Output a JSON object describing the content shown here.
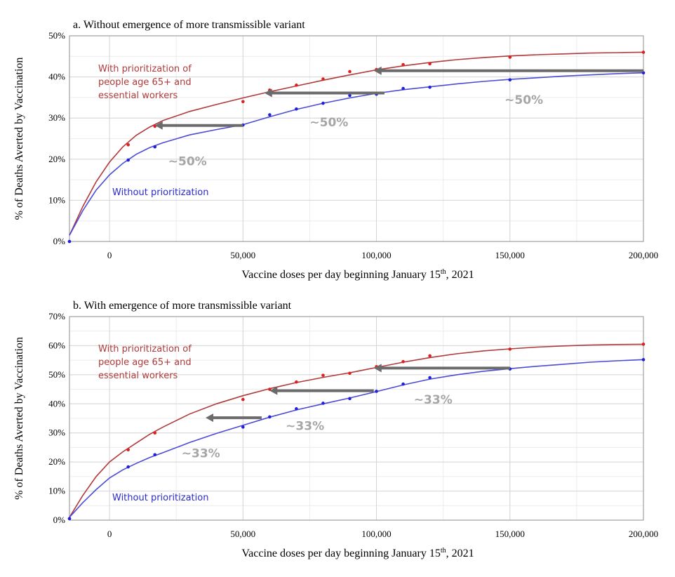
{
  "chart_data": [
    {
      "type": "line",
      "title": "a. Without emergence of more transmissible variant",
      "xlabel_main": "Vaccine doses per day beginning January 15",
      "xlabel_sup": "th",
      "xlabel_tail": ", 2021",
      "ylabel": "% of Deaths Averted by Vaccination",
      "xlim": [
        -15000,
        200000
      ],
      "ylim": [
        0,
        50
      ],
      "x_ticks": [
        0,
        50000,
        100000,
        150000,
        200000
      ],
      "x_tick_labels": [
        "0",
        "50,000",
        "100,000",
        "150,000",
        "200,000"
      ],
      "y_ticks": [
        0,
        10,
        20,
        30,
        40,
        50
      ],
      "y_tick_labels": [
        "0%",
        "10%",
        "20%",
        "30%",
        "40%",
        "50%"
      ],
      "grid": true,
      "series": [
        {
          "name": "With prioritization of people age 65+ and essential workers",
          "label_lines": [
            "With prioritization of",
            "people age 65+ and",
            "essential workers"
          ],
          "color": "#b03a3a",
          "point_color": "#e02020",
          "points_x": [
            -15000,
            7000,
            17000,
            50000,
            60000,
            70000,
            80000,
            90000,
            100000,
            110000,
            120000,
            150000,
            200000
          ],
          "points_y": [
            0,
            23.5,
            28,
            34,
            36.8,
            38,
            39.5,
            41.3,
            41.8,
            43,
            43.2,
            44.8,
            46
          ],
          "curve_x": [
            -15000,
            -10000,
            -5000,
            0,
            5000,
            10000,
            15000,
            20000,
            30000,
            40000,
            50000,
            60000,
            70000,
            80000,
            90000,
            100000,
            110000,
            120000,
            130000,
            140000,
            150000,
            160000,
            170000,
            180000,
            190000,
            200000
          ],
          "curve_y": [
            1.5,
            8.5,
            14.5,
            19.3,
            23,
            25.8,
            27.8,
            29.4,
            31.6,
            33.3,
            34.9,
            36.4,
            37.8,
            39.2,
            40.5,
            41.7,
            42.7,
            43.5,
            44.2,
            44.7,
            45.1,
            45.4,
            45.6,
            45.8,
            45.9,
            46
          ]
        },
        {
          "name": "Without prioritization",
          "label_lines": [
            "Without prioritization"
          ],
          "color": "#4b4bd6",
          "point_color": "#2020dd",
          "points_x": [
            -15000,
            7000,
            17000,
            50000,
            60000,
            70000,
            80000,
            90000,
            100000,
            110000,
            120000,
            150000,
            200000
          ],
          "points_y": [
            0,
            19.8,
            23,
            28.3,
            30.8,
            32.2,
            33.6,
            35.5,
            35.8,
            37.2,
            37.5,
            39.3,
            41
          ],
          "curve_x": [
            -15000,
            -10000,
            -5000,
            0,
            5000,
            10000,
            15000,
            20000,
            30000,
            40000,
            50000,
            60000,
            70000,
            80000,
            90000,
            100000,
            110000,
            120000,
            130000,
            140000,
            150000,
            160000,
            170000,
            180000,
            190000,
            200000
          ],
          "curve_y": [
            1.5,
            7.5,
            12.5,
            16.2,
            19,
            21.2,
            22.8,
            24,
            25.9,
            27.2,
            28.4,
            30.3,
            32.1,
            33.6,
            34.9,
            36,
            36.9,
            37.6,
            38.3,
            38.9,
            39.4,
            39.8,
            40.2,
            40.5,
            40.8,
            41
          ]
        }
      ],
      "arrows": [
        {
          "x_from": 50000,
          "x_to": 17000,
          "y": 28.2
        },
        {
          "x_from": 103000,
          "x_to": 58000,
          "y": 36.1
        },
        {
          "x_from": 200000,
          "x_to": 99000,
          "y": 41.5
        }
      ],
      "annotations": [
        {
          "text": "~50%",
          "x": 22000,
          "y": 19.5
        },
        {
          "text": "~50%",
          "x": 75000,
          "y": 29
        },
        {
          "text": "~50%",
          "x": 148000,
          "y": 34.5
        }
      ]
    },
    {
      "type": "line",
      "title": "b. With emergence of more transmissible variant",
      "xlabel_main": "Vaccine doses per day beginning January 15",
      "xlabel_sup": "th",
      "xlabel_tail": ", 2021",
      "ylabel": "% of Deaths Averted by Vaccination",
      "xlim": [
        -15000,
        200000
      ],
      "ylim": [
        0,
        70
      ],
      "x_ticks": [
        0,
        50000,
        100000,
        150000,
        200000
      ],
      "x_tick_labels": [
        "0",
        "50,000",
        "100,000",
        "150,000",
        "200,000"
      ],
      "y_ticks": [
        0,
        10,
        20,
        30,
        40,
        50,
        60,
        70
      ],
      "y_tick_labels": [
        "0%",
        "10%",
        "20%",
        "30%",
        "40%",
        "50%",
        "60%",
        "70%"
      ],
      "grid": true,
      "series": [
        {
          "name": "With prioritization of people age 65+ and essential workers",
          "label_lines": [
            "With prioritization of",
            "people age 65+ and",
            "essential workers"
          ],
          "color": "#b03a3a",
          "point_color": "#e02020",
          "points_x": [
            -15000,
            7000,
            17000,
            50000,
            60000,
            70000,
            80000,
            90000,
            100000,
            110000,
            120000,
            150000,
            200000
          ],
          "points_y": [
            0.5,
            24.2,
            30,
            41.5,
            45,
            47.5,
            49.8,
            50.5,
            52.8,
            54.5,
            56.5,
            58.8,
            60.5
          ],
          "curve_x": [
            -15000,
            -10000,
            -5000,
            0,
            5000,
            10000,
            15000,
            20000,
            30000,
            40000,
            50000,
            60000,
            70000,
            80000,
            90000,
            100000,
            110000,
            120000,
            130000,
            140000,
            150000,
            160000,
            170000,
            180000,
            190000,
            200000
          ],
          "curve_y": [
            1,
            8.5,
            15,
            20,
            23.5,
            26.5,
            29.5,
            32,
            36.5,
            40,
            42.8,
            45.2,
            47.3,
            49.1,
            50.7,
            52.5,
            54.3,
            55.9,
            57.2,
            58.2,
            58.9,
            59.5,
            59.9,
            60.2,
            60.4,
            60.5
          ]
        },
        {
          "name": "Without prioritization",
          "label_lines": [
            "Without prioritization"
          ],
          "color": "#4b4bd6",
          "point_color": "#2020dd",
          "points_x": [
            -15000,
            7000,
            17000,
            50000,
            60000,
            70000,
            80000,
            90000,
            100000,
            110000,
            120000,
            150000,
            200000
          ],
          "points_y": [
            0.5,
            18.3,
            22.5,
            32,
            35.5,
            38.3,
            40.2,
            41.8,
            44.3,
            46.8,
            49,
            52,
            55.2
          ],
          "curve_x": [
            -15000,
            -10000,
            -5000,
            0,
            5000,
            10000,
            15000,
            20000,
            30000,
            40000,
            50000,
            60000,
            70000,
            80000,
            90000,
            100000,
            110000,
            120000,
            130000,
            140000,
            150000,
            160000,
            170000,
            180000,
            190000,
            200000
          ],
          "curve_y": [
            1,
            6,
            10.5,
            14.5,
            17.3,
            19.5,
            21.5,
            23.2,
            26.7,
            29.8,
            32.6,
            35.4,
            37.9,
            40,
            42,
            44.2,
            46.5,
            48.5,
            50,
            51.2,
            52.1,
            52.9,
            53.6,
            54.3,
            54.8,
            55.2
          ]
        }
      ],
      "arrows": [
        {
          "x_from": 57000,
          "x_to": 36000,
          "y": 35.2
        },
        {
          "x_from": 99000,
          "x_to": 60000,
          "y": 44.5
        },
        {
          "x_from": 150000,
          "x_to": 99000,
          "y": 52.3
        }
      ],
      "annotations": [
        {
          "text": "~33%",
          "x": 27000,
          "y": 23
        },
        {
          "text": "~33%",
          "x": 66000,
          "y": 32.5
        },
        {
          "text": "~33%",
          "x": 114000,
          "y": 41.5
        }
      ]
    }
  ]
}
